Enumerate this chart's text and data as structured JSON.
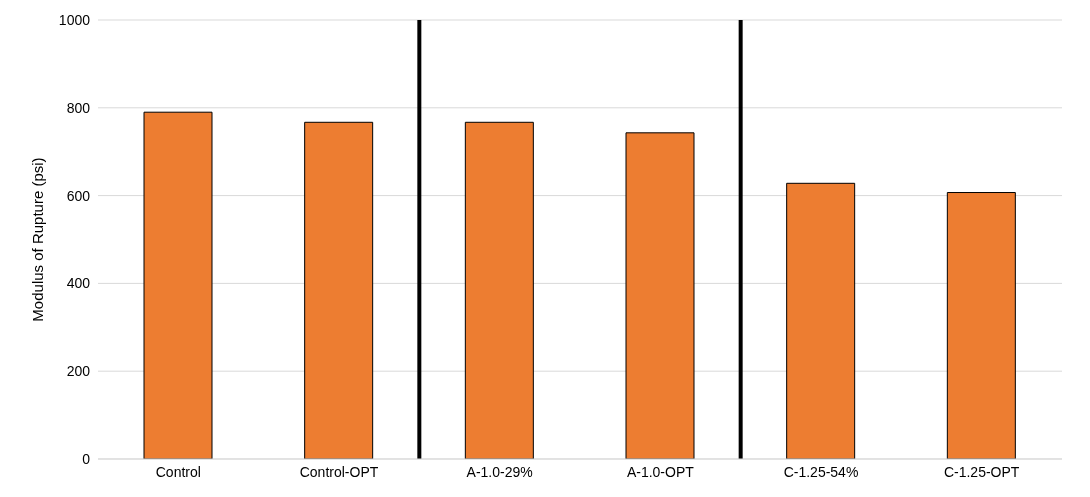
{
  "chart_data": {
    "type": "bar",
    "ylabel": "Modulus of Rupture (psi)",
    "categories": [
      "Control",
      "Control-OPT",
      "A-1.0-29%",
      "A-1.0-OPT",
      "C-1.25-54%",
      "C-1.25-OPT"
    ],
    "values": [
      790,
      767,
      767,
      743,
      628,
      607
    ],
    "color": "#ed7d31",
    "ylim": [
      0,
      1000
    ],
    "yticks": [
      0,
      200,
      400,
      600,
      800,
      1000
    ],
    "grid": "y"
  }
}
